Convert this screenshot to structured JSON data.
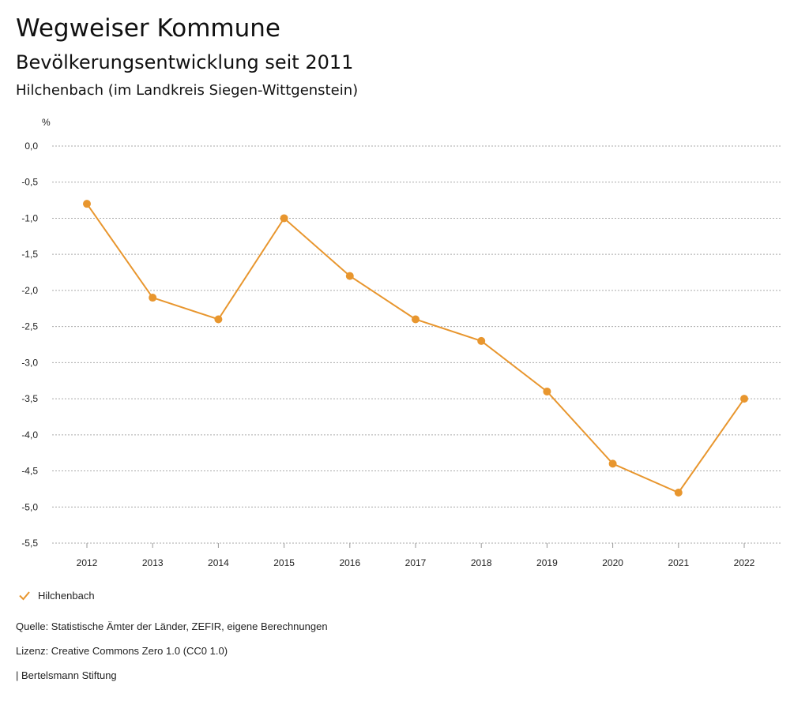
{
  "header": {
    "title": "Wegweiser Kommune",
    "subtitle": "Bevölkerungsentwicklung seit 2011",
    "region": "Hilchenbach (im Landkreis Siegen-Wittgenstein)"
  },
  "chart_data": {
    "type": "line",
    "ylabel": "%",
    "categories": [
      "2012",
      "2013",
      "2014",
      "2015",
      "2016",
      "2017",
      "2018",
      "2019",
      "2020",
      "2021",
      "2022"
    ],
    "series": [
      {
        "name": "Hilchenbach",
        "values": [
          -0.8,
          -2.1,
          -2.4,
          -1.0,
          -1.8,
          -2.4,
          -2.7,
          -3.4,
          -4.4,
          -4.8,
          -3.5
        ]
      }
    ],
    "yticks": [
      "0,0",
      "-0,5",
      "-1,0",
      "-1,5",
      "-2,0",
      "-2,5",
      "-3,0",
      "-3,5",
      "-4,0",
      "-4,5",
      "-5,0",
      "-5,5"
    ],
    "ylim": [
      -5.5,
      0.0
    ],
    "grid": true,
    "legend_position": "bottom-left",
    "color": "#E8962E"
  },
  "legend": {
    "label": "Hilchenbach",
    "icon": "check-icon"
  },
  "footer": {
    "source": "Quelle: Statistische Ämter der Länder, ZEFIR, eigene Berechnungen",
    "license": "Lizenz: Creative Commons Zero 1.0 (CC0 1.0)",
    "brand": "| Bertelsmann Stiftung"
  }
}
